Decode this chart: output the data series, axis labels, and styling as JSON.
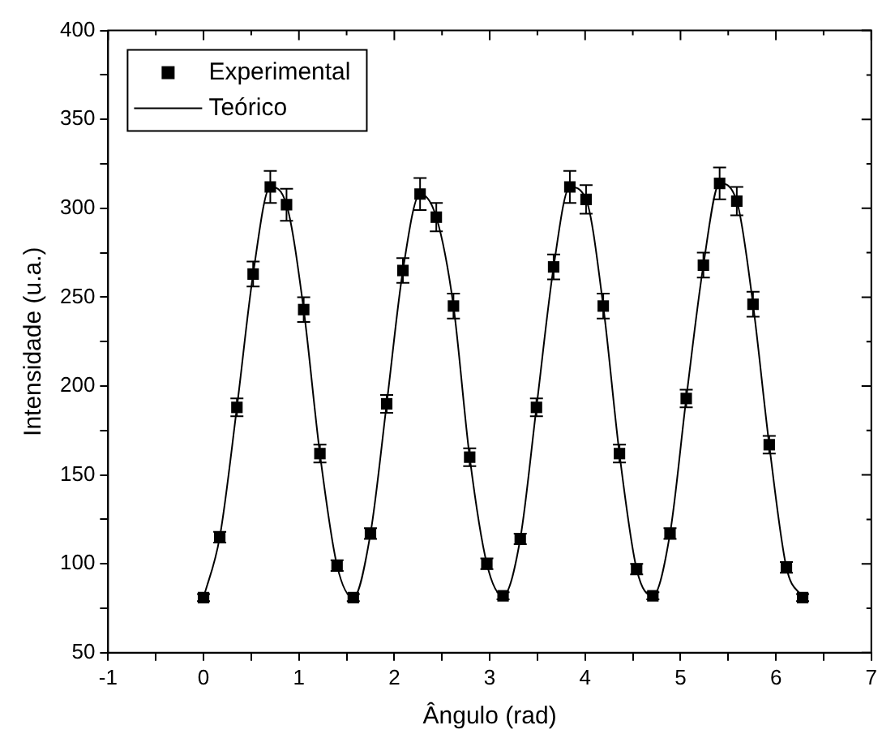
{
  "chart_data": {
    "type": "scatter",
    "xlabel": "Ângulo (rad)",
    "ylabel": "Intensidade (u.a.)",
    "x": [
      0,
      0.17,
      0.35,
      0.52,
      0.7,
      0.87,
      1.05,
      1.22,
      1.4,
      1.57,
      1.75,
      1.92,
      2.09,
      2.27,
      2.44,
      2.62,
      2.79,
      2.97,
      3.14,
      3.32,
      3.49,
      3.67,
      3.84,
      4.01,
      4.19,
      4.36,
      4.54,
      4.71,
      4.89,
      5.06,
      5.24,
      5.41,
      5.59,
      5.76,
      5.93,
      6.11,
      6.28
    ],
    "series": [
      {
        "name": "Experimental",
        "type": "scatter",
        "color": "#000000",
        "marker": "square",
        "values": [
          81,
          115,
          188,
          263,
          312,
          302,
          243,
          162,
          99,
          81,
          117,
          190,
          265,
          308,
          295,
          245,
          160,
          100,
          82,
          114,
          188,
          267,
          312,
          305,
          245,
          162,
          97,
          82,
          117,
          193,
          268,
          314,
          304,
          246,
          167,
          98,
          81
        ],
        "errors": [
          2,
          3,
          5,
          7,
          9,
          9,
          7,
          5,
          3,
          2,
          3,
          5,
          7,
          9,
          8,
          7,
          5,
          3,
          2,
          3,
          5,
          7,
          9,
          8,
          7,
          5,
          3,
          2,
          3,
          5,
          7,
          9,
          8,
          7,
          5,
          3,
          2
        ]
      },
      {
        "name": "Teórico",
        "type": "line",
        "color": "#000000",
        "marker": "none",
        "line_style": "solid",
        "values": [
          81,
          115,
          188,
          263,
          312,
          302,
          243,
          162,
          99,
          81,
          117,
          190,
          265,
          308,
          295,
          245,
          160,
          100,
          82,
          114,
          188,
          267,
          312,
          305,
          245,
          162,
          97,
          82,
          117,
          193,
          268,
          314,
          304,
          246,
          167,
          98,
          81
        ]
      }
    ],
    "xlim": [
      -1,
      7
    ],
    "xticks": [
      -1,
      {
        "value": -0.5,
        "label": null
      },
      0,
      {
        "value": 0.5,
        "label": null
      },
      1,
      {
        "value": 1.5,
        "label": null
      },
      2,
      {
        "value": 2.5,
        "label": null
      },
      3,
      {
        "value": 3.5,
        "label": null
      },
      4,
      {
        "value": 4.5,
        "label": null
      },
      5,
      {
        "value": 5.5,
        "label": null
      },
      6,
      {
        "value": 6.5,
        "label": null
      },
      7
    ],
    "ylim": [
      50,
      400
    ],
    "yticks": [
      50,
      {
        "value": 75,
        "label": null
      },
      100,
      {
        "value": 125,
        "label": null
      },
      150,
      {
        "value": 175,
        "label": null
      },
      200,
      {
        "value": 225,
        "label": null
      },
      250,
      {
        "value": 275,
        "label": null
      },
      300,
      {
        "value": 325,
        "label": null
      },
      350,
      {
        "value": 375,
        "label": null
      },
      400
    ],
    "grid": false,
    "legend": "top left"
  }
}
